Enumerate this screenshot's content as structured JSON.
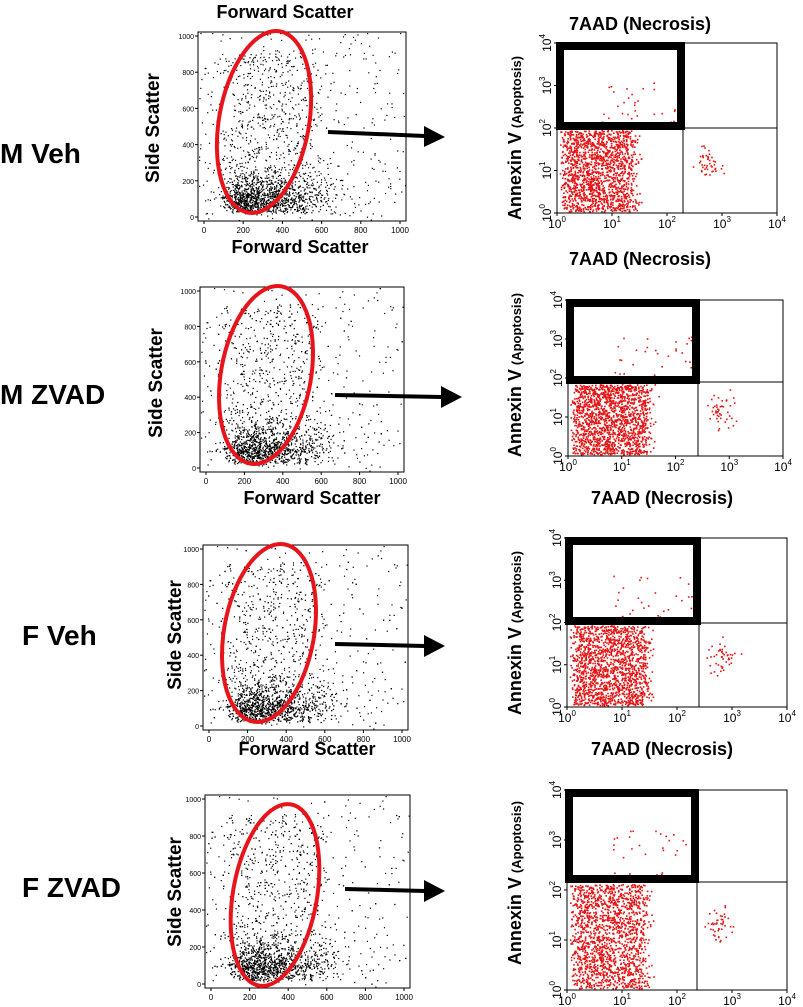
{
  "colors": {
    "dots": "#000000",
    "gate": "#e8141c",
    "quad_dots": "#e41414",
    "gate_box": "#000000"
  },
  "rows": [
    {
      "label": "M Veh",
      "fsc_label_above": "Forward Scatter",
      "fsc_label_below": "Forward Scatter",
      "ssc_label": "Side Scatter",
      "quad_top_label": "7AAD (Necrosis)",
      "quad_bottom_label": "",
      "annexin_main": "Annexin V",
      "annexin_sub": "(Apoptosis)"
    },
    {
      "label": "M ZVAD",
      "fsc_label_above": "",
      "fsc_label_below": "Forward Scatter",
      "ssc_label": "Side Scatter",
      "quad_top_label": "7AAD (Necrosis)",
      "quad_bottom_label": "7AAD (Necrosis)",
      "annexin_main": "Annexin V",
      "annexin_sub": "(Apoptosis)"
    },
    {
      "label": "F Veh",
      "fsc_label_above": "",
      "fsc_label_below": "Forward Scatter",
      "ssc_label": "Side Scatter",
      "quad_top_label": "",
      "quad_bottom_label": "7AAD (Necrosis)",
      "annexin_main": "Annexin V",
      "annexin_sub": "(Apoptosis)"
    },
    {
      "label": "F ZVAD",
      "fsc_label_above": "",
      "fsc_label_below": "",
      "ssc_label": "Side Scatter",
      "quad_top_label": "",
      "quad_bottom_label": "",
      "annexin_main": "Annexin V",
      "annexin_sub": "(Apoptosis)"
    }
  ],
  "chart_data": [
    {
      "type": "scatter",
      "panel": "forward-vs-side-scatter",
      "x_ticks": [
        "0",
        "200",
        "400",
        "600",
        "800",
        "1000"
      ],
      "y_ticks": [
        "0",
        "200",
        "400",
        "600",
        "800",
        "1000"
      ],
      "xlim": [
        0,
        1000
      ],
      "ylim": [
        0,
        1000
      ],
      "gate": {
        "shape": "ellipse",
        "center_x": 320,
        "center_y": 450,
        "radius_x": 210,
        "radius_y": 470,
        "rotation_deg": 10
      }
    },
    {
      "type": "scatter",
      "panel": "7aad-vs-annexin-v",
      "x_scale": "log",
      "y_scale": "log",
      "x_ticks": [
        "10^0",
        "10^1",
        "10^2",
        "10^3",
        "10^4"
      ],
      "y_ticks": [
        "10^0",
        "10^1",
        "10^2",
        "10^3",
        "10^4"
      ],
      "xlim": [
        1,
        10000
      ],
      "ylim": [
        1,
        10000
      ],
      "quadrant_divider": {
        "x": 200,
        "y": 100
      },
      "gate": {
        "shape": "rectangle",
        "x_range": [
          1,
          200
        ],
        "y_range": [
          100,
          10000
        ]
      }
    }
  ]
}
